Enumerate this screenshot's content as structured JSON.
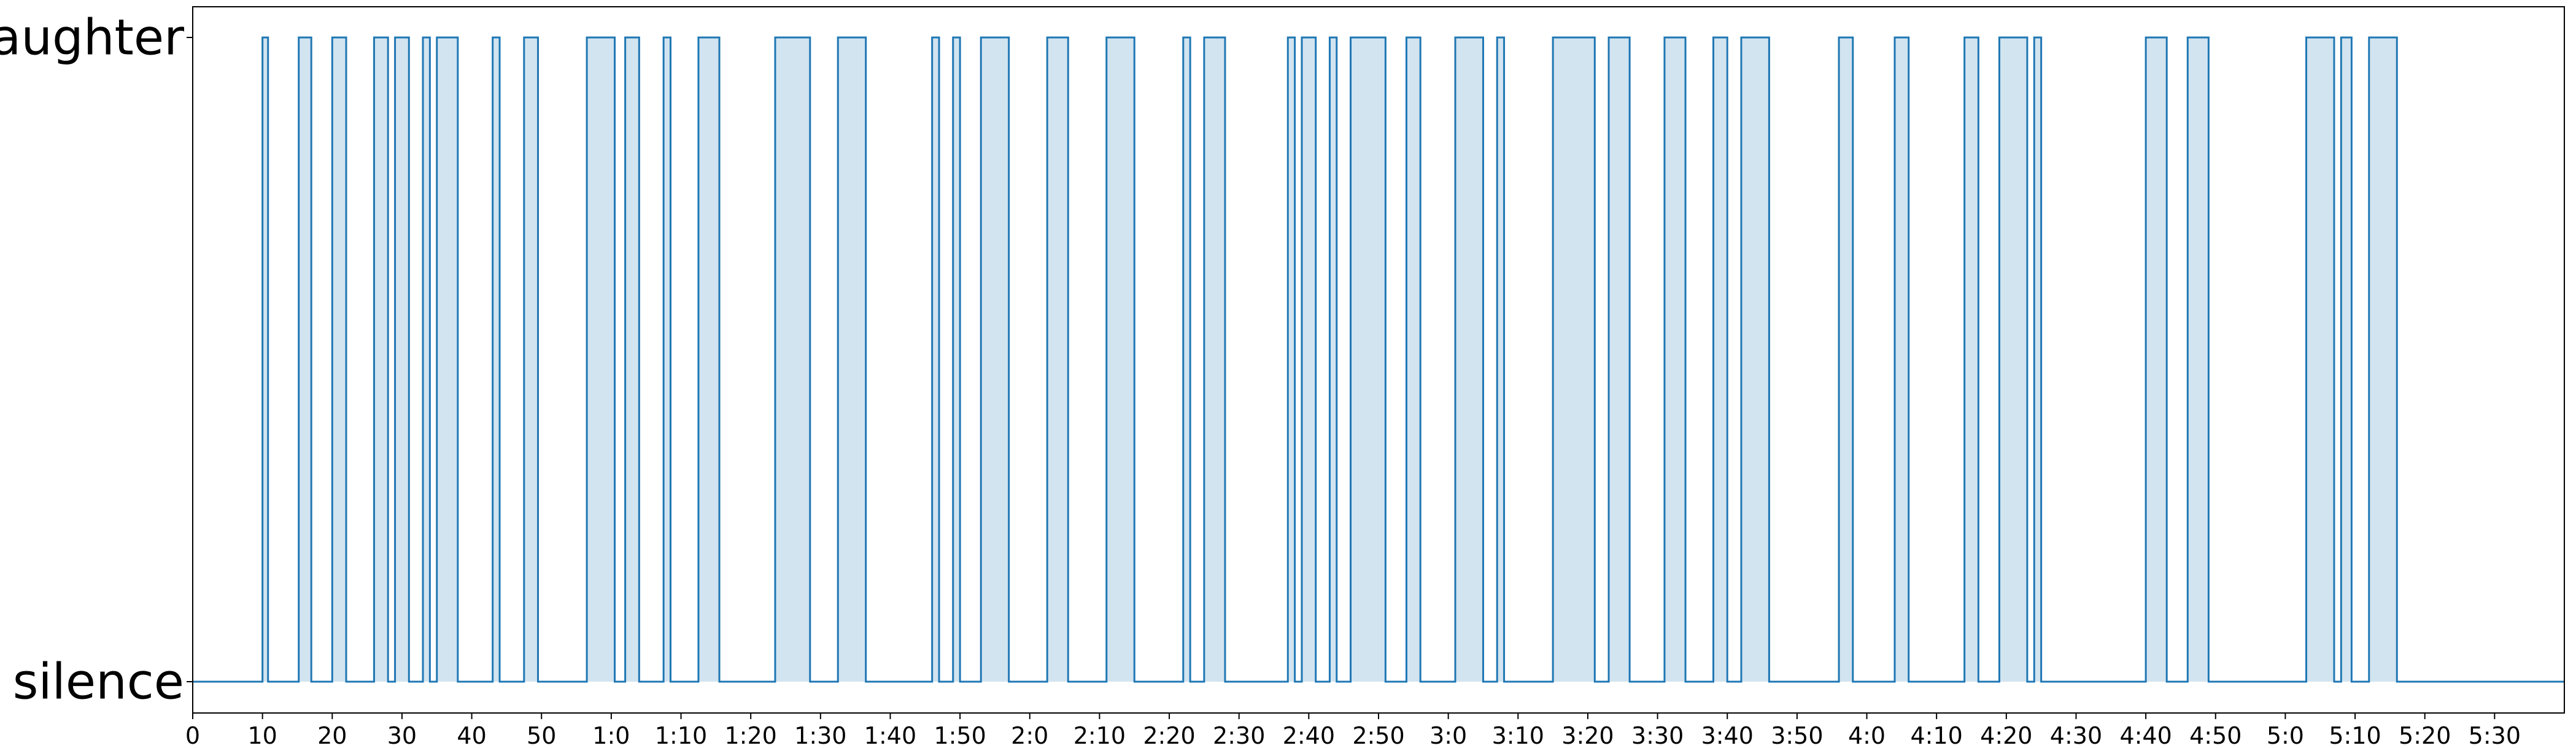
{
  "chart_data": {
    "type": "area",
    "step": true,
    "title": "",
    "xlabel": "",
    "ylabel": "",
    "xlim": [
      0,
      340
    ],
    "ylim": [
      0,
      1
    ],
    "grid": false,
    "legend": "none",
    "y_ticks": [
      {
        "value": 0,
        "label": "silence"
      },
      {
        "value": 1,
        "label": "laughter"
      }
    ],
    "x_ticks": [
      {
        "value": 0,
        "label": "0"
      },
      {
        "value": 10,
        "label": "10"
      },
      {
        "value": 20,
        "label": "20"
      },
      {
        "value": 30,
        "label": "30"
      },
      {
        "value": 40,
        "label": "40"
      },
      {
        "value": 50,
        "label": "50"
      },
      {
        "value": 60,
        "label": "1:0"
      },
      {
        "value": 70,
        "label": "1:10"
      },
      {
        "value": 80,
        "label": "1:20"
      },
      {
        "value": 90,
        "label": "1:30"
      },
      {
        "value": 100,
        "label": "1:40"
      },
      {
        "value": 110,
        "label": "1:50"
      },
      {
        "value": 120,
        "label": "2:0"
      },
      {
        "value": 130,
        "label": "2:10"
      },
      {
        "value": 140,
        "label": "2:20"
      },
      {
        "value": 150,
        "label": "2:30"
      },
      {
        "value": 160,
        "label": "2:40"
      },
      {
        "value": 170,
        "label": "2:50"
      },
      {
        "value": 180,
        "label": "3:0"
      },
      {
        "value": 190,
        "label": "3:10"
      },
      {
        "value": 200,
        "label": "3:20"
      },
      {
        "value": 210,
        "label": "3:30"
      },
      {
        "value": 220,
        "label": "3:40"
      },
      {
        "value": 230,
        "label": "3:50"
      },
      {
        "value": 240,
        "label": "4:0"
      },
      {
        "value": 250,
        "label": "4:10"
      },
      {
        "value": 260,
        "label": "4:20"
      },
      {
        "value": 270,
        "label": "4:30"
      },
      {
        "value": 280,
        "label": "4:40"
      },
      {
        "value": 290,
        "label": "4:50"
      },
      {
        "value": 300,
        "label": "5:0"
      },
      {
        "value": 310,
        "label": "5:10"
      },
      {
        "value": 320,
        "label": "5:20"
      },
      {
        "value": 330,
        "label": "5:30"
      }
    ],
    "x_range": [
      0,
      340
    ],
    "laughter_segments": [
      [
        10.0,
        10.8
      ],
      [
        15.2,
        17.0
      ],
      [
        20.0,
        22.0
      ],
      [
        26.0,
        28.0
      ],
      [
        29.0,
        31.0
      ],
      [
        33.0,
        34.0
      ],
      [
        35.0,
        38.0
      ],
      [
        43.0,
        44.0
      ],
      [
        47.5,
        49.5
      ],
      [
        56.5,
        60.5
      ],
      [
        62.0,
        64.0
      ],
      [
        67.5,
        68.5
      ],
      [
        72.5,
        75.5
      ],
      [
        83.5,
        88.5
      ],
      [
        92.5,
        96.5
      ],
      [
        106.0,
        107.0
      ],
      [
        109.0,
        110.0
      ],
      [
        113.0,
        117.0
      ],
      [
        122.5,
        125.5
      ],
      [
        131.0,
        135.0
      ],
      [
        142.0,
        143.0
      ],
      [
        145.0,
        148.0
      ],
      [
        157.0,
        158.0
      ],
      [
        159.0,
        161.0
      ],
      [
        163.0,
        164.0
      ],
      [
        166.0,
        171.0
      ],
      [
        174.0,
        176.0
      ],
      [
        181.0,
        185.0
      ],
      [
        187.0,
        188.0
      ],
      [
        195.0,
        201.0
      ],
      [
        203.0,
        206.0
      ],
      [
        211.0,
        214.0
      ],
      [
        218.0,
        220.0
      ],
      [
        222.0,
        226.0
      ],
      [
        236.0,
        238.0
      ],
      [
        244.0,
        246.0
      ],
      [
        254.0,
        256.0
      ],
      [
        259.0,
        263.0
      ],
      [
        264.0,
        265.0
      ],
      [
        280.0,
        283.0
      ],
      [
        286.0,
        289.0
      ],
      [
        303.0,
        307.0
      ],
      [
        308.0,
        309.5
      ],
      [
        312.0,
        316.0
      ]
    ],
    "series": [
      {
        "color": "#1f77b4",
        "fill": "#1f77b4"
      }
    ]
  }
}
